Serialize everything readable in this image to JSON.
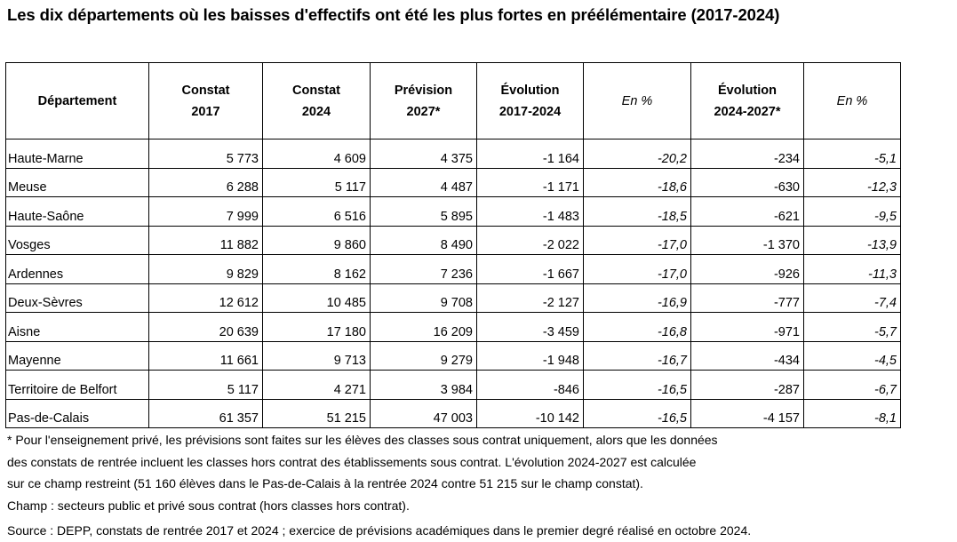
{
  "title": "Les dix départements où les baisses d'effectifs ont été les plus fortes en préélémentaire (2017-2024)",
  "table": {
    "headers": [
      [
        "Département"
      ],
      [
        "Constat",
        "2017"
      ],
      [
        "Constat",
        "2024"
      ],
      [
        "Prévision",
        "2027*"
      ],
      [
        "Évolution",
        "2017-2024"
      ],
      [
        "En %"
      ],
      [
        "Évolution",
        "2024-2027*"
      ],
      [
        "En %"
      ]
    ],
    "rows": [
      [
        "Haute-Marne",
        "5 773",
        "4 609",
        "4 375",
        "-1 164",
        "-20,2",
        "-234",
        "-5,1"
      ],
      [
        "Meuse",
        "6 288",
        "5 117",
        "4 487",
        "-1 171",
        "-18,6",
        "-630",
        "-12,3"
      ],
      [
        "Haute-Saône",
        "7 999",
        "6 516",
        "5 895",
        "-1 483",
        "-18,5",
        "-621",
        "-9,5"
      ],
      [
        "Vosges",
        "11 882",
        "9 860",
        "8 490",
        "-2 022",
        "-17,0",
        "-1 370",
        "-13,9"
      ],
      [
        "Ardennes",
        "9 829",
        "8 162",
        "7 236",
        "-1 667",
        "-17,0",
        "-926",
        "-11,3"
      ],
      [
        "Deux-Sèvres",
        "12 612",
        "10 485",
        "9 708",
        "-2 127",
        "-16,9",
        "-777",
        "-7,4"
      ],
      [
        "Aisne",
        "20 639",
        "17 180",
        "16 209",
        "-3 459",
        "-16,8",
        "-971",
        "-5,7"
      ],
      [
        "Mayenne",
        "11 661",
        "9 713",
        "9 279",
        "-1 948",
        "-16,7",
        "-434",
        "-4,5"
      ],
      [
        "Territoire de Belfort",
        "5 117",
        "4 271",
        "3 984",
        "-846",
        "-16,5",
        "-287",
        "-6,7"
      ],
      [
        "Pas-de-Calais",
        "61 357",
        "51 215",
        "47 003",
        "-10 142",
        "-16,5",
        "-4 157",
        "-8,1"
      ]
    ]
  },
  "notes": [
    "* Pour l'enseignement privé, les prévisions sont faites sur les élèves des classes sous contrat uniquement, alors que les données",
    "des constats de rentrée incluent les classes hors contrat des établissements sous contrat. L'évolution 2024-2027 est calculée",
    "sur ce champ restreint (51 160 élèves dans le Pas-de-Calais à la rentrée 2024 contre 51 215 sur le champ constat).",
    "Champ : secteurs public et privé sous contrat (hors classes hors contrat)."
  ],
  "source": "Source : DEPP, constats de rentrée 2017 et 2024 ; exercice de prévisions académiques dans le premier degré réalisé en octobre 2024."
}
